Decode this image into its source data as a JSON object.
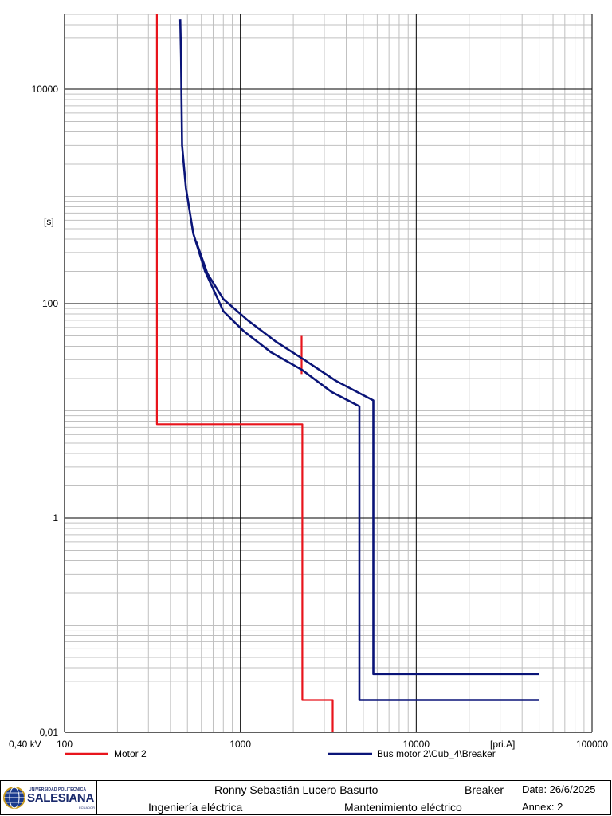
{
  "chart_data": {
    "type": "line",
    "title": "",
    "x_scale": "log",
    "y_scale": "log",
    "xlim": [
      100,
      100000
    ],
    "ylim": [
      0.01,
      50000
    ],
    "x_ticks": [
      {
        "value": 100,
        "label": "100"
      },
      {
        "value": 1000,
        "label": "1000"
      },
      {
        "value": 10000,
        "label": "10000"
      },
      {
        "value": 100000,
        "label": "100000"
      }
    ],
    "y_ticks": [
      {
        "value": 0.01,
        "label": "0,01"
      },
      {
        "value": 1,
        "label": "1"
      },
      {
        "value": 100,
        "label": "100"
      },
      {
        "value": 10000,
        "label": "10000"
      }
    ],
    "x_unit": "[pri.A]",
    "y_unit": "[s]",
    "voltage_label": "0,40 kV",
    "grid": true,
    "legend_position": "bottom",
    "series": [
      {
        "name": "Motor 2",
        "color": "#e8141c",
        "segments": [
          [
            [
              335,
              50000
            ],
            [
              335,
              7.5
            ],
            [
              2250,
              7.5
            ],
            [
              2250,
              0.02
            ],
            [
              3350,
              0.02
            ],
            [
              3350,
              0.01
            ]
          ],
          [
            [
              2230,
              50
            ],
            [
              2230,
              22
            ]
          ]
        ]
      },
      {
        "name": "Bus motor 2\\Cub_4\\Breaker",
        "color": "#0a1478",
        "segments": [
          [
            [
              455,
              45000
            ],
            [
              460,
              20000
            ],
            [
              462,
              9000
            ],
            [
              466,
              3000
            ],
            [
              490,
              1200
            ],
            [
              540,
              450
            ],
            [
              630,
              200
            ],
            [
              800,
              85
            ],
            [
              1050,
              55
            ],
            [
              1500,
              35
            ],
            [
              2250,
              24
            ],
            [
              3300,
              15
            ],
            [
              4750,
              11
            ],
            [
              4750,
              0.02
            ],
            [
              50000,
              0.02
            ]
          ],
          [
            [
              560,
              380
            ],
            [
              650,
              190
            ],
            [
              800,
              110
            ],
            [
              1100,
              70
            ],
            [
              1600,
              44
            ],
            [
              2300,
              30
            ],
            [
              3500,
              19
            ],
            [
              5700,
              12.5
            ],
            [
              5700,
              0.035
            ],
            [
              50000,
              0.035
            ]
          ]
        ]
      }
    ]
  },
  "footer": {
    "logo": {
      "university_line": "UNIVERSIDAD POLITÉCNICA",
      "name": "SALESIANA",
      "country": "ECUADOR"
    },
    "author": "Ronny Sebastián Lucero Basurto",
    "device": "Breaker",
    "career": "Ingeniería eléctrica",
    "subject": "Mantenimiento eléctrico",
    "date": "Date: 26/6/2025",
    "annex": "Annex: 2"
  }
}
